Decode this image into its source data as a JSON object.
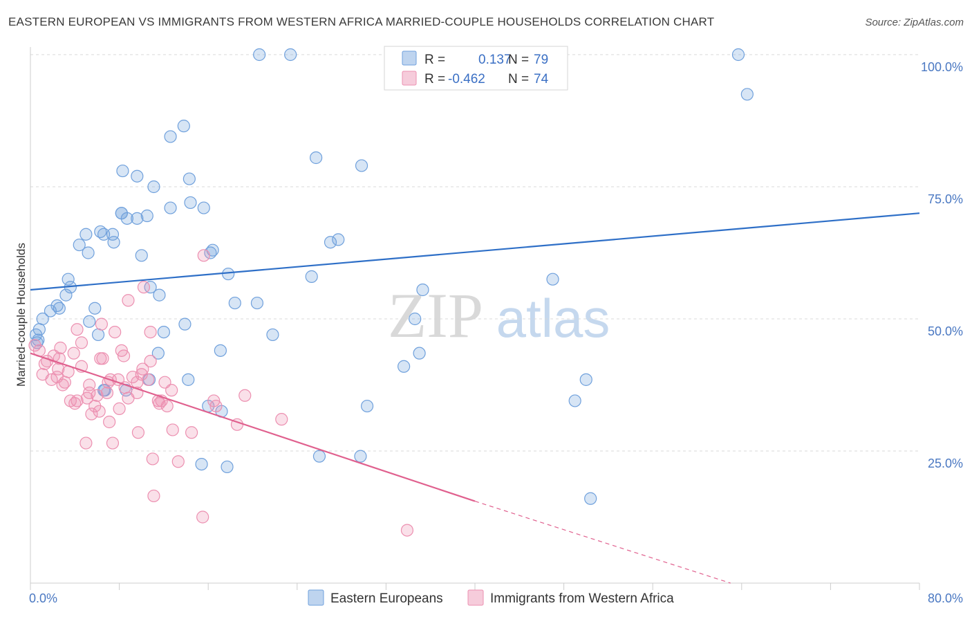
{
  "title": "EASTERN EUROPEAN VS IMMIGRANTS FROM WESTERN AFRICA MARRIED-COUPLE HOUSEHOLDS CORRELATION CHART",
  "source": "Source: ZipAtlas.com",
  "watermark": {
    "zip": "ZIP",
    "atlas": "atlas"
  },
  "colors": {
    "blue": "#6fa0dc",
    "blue_line": "#2e6fc7",
    "pink": "#ec8fb0",
    "pink_line": "#e0608e",
    "grid": "#d8d8d8",
    "tick_label": "#4a78c2"
  },
  "legend": {
    "items": [
      {
        "r_label": "R =",
        "r_value": "0.137",
        "n_label": "N =",
        "n_value": "79",
        "color": "#6fa0dc"
      },
      {
        "r_label": "R =",
        "r_value": "-0.462",
        "n_label": "N =",
        "n_value": "74",
        "color": "#ec8fb0"
      }
    ]
  },
  "chart_data": {
    "type": "scatter",
    "xlabel": "",
    "ylabel": "Married-couple Households",
    "xlim": [
      0,
      80
    ],
    "ylim": [
      0,
      100
    ],
    "x_tick_labels": [
      "0.0%",
      "80.0%"
    ],
    "y_ticks": [
      25,
      50,
      75,
      100
    ],
    "y_tick_labels": [
      "25.0%",
      "50.0%",
      "75.0%",
      "100.0%"
    ],
    "grid": true,
    "legend_placement": "top-center",
    "series": [
      {
        "name": "Eastern Europeans",
        "color": "#6fa0dc",
        "trend": {
          "x": [
            0,
            80
          ],
          "y": [
            55.5,
            70.0
          ]
        },
        "points": [
          [
            0.5,
            47.0
          ],
          [
            0.7,
            46.0
          ],
          [
            0.8,
            48.0
          ],
          [
            1.1,
            50.0
          ],
          [
            1.8,
            51.5
          ],
          [
            2.4,
            52.5
          ],
          [
            2.6,
            52.0
          ],
          [
            3.2,
            54.5
          ],
          [
            3.6,
            56.0
          ],
          [
            3.4,
            57.5
          ],
          [
            4.4,
            64.0
          ],
          [
            5.0,
            66.0
          ],
          [
            5.2,
            62.5
          ],
          [
            6.1,
            47.0
          ],
          [
            5.3,
            49.5
          ],
          [
            5.8,
            52.0
          ],
          [
            6.3,
            66.5
          ],
          [
            6.6,
            66.0
          ],
          [
            7.4,
            66.0
          ],
          [
            7.5,
            64.5
          ],
          [
            8.2,
            70.0
          ],
          [
            8.2,
            70.0
          ],
          [
            8.3,
            78.0
          ],
          [
            8.7,
            69.0
          ],
          [
            9.6,
            69.0
          ],
          [
            9.6,
            77.0
          ],
          [
            10.0,
            62.0
          ],
          [
            10.5,
            69.5
          ],
          [
            11.1,
            75.0
          ],
          [
            10.8,
            56.0
          ],
          [
            11.6,
            54.5
          ],
          [
            12.0,
            47.5
          ],
          [
            11.5,
            43.5
          ],
          [
            12.6,
            84.5
          ],
          [
            12.6,
            71.0
          ],
          [
            13.8,
            86.5
          ],
          [
            14.3,
            76.5
          ],
          [
            14.4,
            72.0
          ],
          [
            13.9,
            49.0
          ],
          [
            14.2,
            38.5
          ],
          [
            15.6,
            71.0
          ],
          [
            16.2,
            62.5
          ],
          [
            16.4,
            63.0
          ],
          [
            16.0,
            33.5
          ],
          [
            17.1,
            44.0
          ],
          [
            17.2,
            32.5
          ],
          [
            17.8,
            58.5
          ],
          [
            18.4,
            53.0
          ],
          [
            20.4,
            53.0
          ],
          [
            20.6,
            100.0
          ],
          [
            23.4,
            100.0
          ],
          [
            21.8,
            47.0
          ],
          [
            25.3,
            58.0
          ],
          [
            25.7,
            80.5
          ],
          [
            26.0,
            24.0
          ],
          [
            27.0,
            64.5
          ],
          [
            27.7,
            65.0
          ],
          [
            29.8,
            79.0
          ],
          [
            29.7,
            24.0
          ],
          [
            30.3,
            33.5
          ],
          [
            33.6,
            41.0
          ],
          [
            34.6,
            50.0
          ],
          [
            35.0,
            43.5
          ],
          [
            35.3,
            55.5
          ],
          [
            36.1,
            100.0
          ],
          [
            39.2,
            100.0
          ],
          [
            47.0,
            57.5
          ],
          [
            49.0,
            34.5
          ],
          [
            50.0,
            38.5
          ],
          [
            50.4,
            16.0
          ],
          [
            63.7,
            100.0
          ],
          [
            64.5,
            92.5
          ],
          [
            17.7,
            22.0
          ],
          [
            15.4,
            22.5
          ],
          [
            8.6,
            36.5
          ],
          [
            10.7,
            38.5
          ],
          [
            6.6,
            36.5
          ],
          [
            6.7,
            36.5
          ],
          [
            0.6,
            45.5
          ]
        ]
      },
      {
        "name": "Immigrants from Western Africa",
        "color": "#ec8fb0",
        "trend": {
          "x": [
            0,
            40
          ],
          "y": [
            43.5,
            15.5
          ]
        },
        "trend_dashed": {
          "x": [
            40,
            63
          ],
          "y": [
            15.5,
            0
          ]
        },
        "points": [
          [
            0.4,
            45.0
          ],
          [
            0.8,
            44.0
          ],
          [
            1.1,
            39.5
          ],
          [
            1.3,
            41.5
          ],
          [
            1.5,
            42.0
          ],
          [
            1.9,
            38.5
          ],
          [
            2.1,
            43.0
          ],
          [
            2.5,
            40.5
          ],
          [
            2.6,
            42.5
          ],
          [
            2.7,
            44.5
          ],
          [
            2.9,
            37.5
          ],
          [
            3.1,
            38.0
          ],
          [
            3.4,
            40.0
          ],
          [
            3.9,
            43.5
          ],
          [
            3.6,
            34.5
          ],
          [
            4.0,
            34.0
          ],
          [
            4.2,
            34.5
          ],
          [
            4.6,
            41.0
          ],
          [
            4.6,
            45.5
          ],
          [
            5.1,
            35.0
          ],
          [
            5.3,
            37.5
          ],
          [
            5.0,
            26.5
          ],
          [
            5.3,
            36.0
          ],
          [
            5.5,
            32.0
          ],
          [
            5.8,
            33.5
          ],
          [
            6.0,
            35.5
          ],
          [
            6.2,
            32.5
          ],
          [
            6.4,
            49.0
          ],
          [
            6.3,
            42.5
          ],
          [
            6.5,
            42.5
          ],
          [
            6.9,
            36.0
          ],
          [
            7.0,
            38.0
          ],
          [
            7.2,
            38.5
          ],
          [
            7.1,
            30.5
          ],
          [
            7.4,
            26.5
          ],
          [
            7.6,
            47.5
          ],
          [
            7.9,
            38.5
          ],
          [
            8.0,
            33.0
          ],
          [
            8.2,
            44.0
          ],
          [
            8.4,
            43.0
          ],
          [
            8.5,
            37.0
          ],
          [
            8.8,
            35.0
          ],
          [
            8.8,
            53.5
          ],
          [
            9.2,
            39.0
          ],
          [
            9.6,
            38.0
          ],
          [
            9.6,
            36.0
          ],
          [
            9.7,
            28.5
          ],
          [
            10.0,
            39.5
          ],
          [
            10.1,
            40.5
          ],
          [
            10.2,
            56.0
          ],
          [
            10.6,
            38.5
          ],
          [
            10.8,
            47.5
          ],
          [
            10.8,
            42.0
          ],
          [
            11.0,
            23.5
          ],
          [
            11.1,
            16.5
          ],
          [
            11.5,
            34.5
          ],
          [
            11.6,
            34.0
          ],
          [
            11.8,
            34.5
          ],
          [
            12.1,
            38.0
          ],
          [
            12.3,
            33.5
          ],
          [
            12.7,
            36.5
          ],
          [
            12.8,
            29.0
          ],
          [
            13.3,
            23.0
          ],
          [
            14.5,
            28.5
          ],
          [
            15.5,
            12.5
          ],
          [
            15.6,
            62.0
          ],
          [
            16.5,
            34.5
          ],
          [
            16.7,
            33.5
          ],
          [
            18.6,
            30.0
          ],
          [
            19.3,
            35.5
          ],
          [
            22.6,
            31.0
          ],
          [
            33.9,
            10.0
          ],
          [
            4.2,
            48.0
          ],
          [
            2.4,
            39.0
          ]
        ]
      }
    ]
  }
}
